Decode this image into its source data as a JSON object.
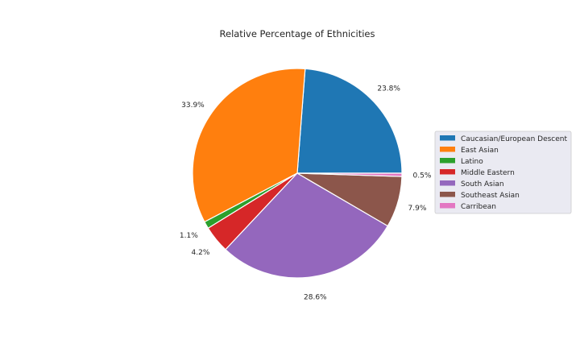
{
  "chart_data": {
    "type": "pie",
    "title": "Relative Percentage of Ethnicities",
    "categories": [
      "Caucasian/European Descent",
      "East Asian",
      "Latino",
      "Middle Eastern",
      "South Asian",
      "Southeast Asian",
      "Carribean"
    ],
    "values": [
      23.8,
      33.9,
      1.1,
      4.2,
      28.6,
      7.9,
      0.5
    ],
    "labels": [
      "23.8%",
      "33.9%",
      "1.1%",
      "4.2%",
      "28.6%",
      "7.9%",
      "0.5%"
    ],
    "colors": [
      "#1f77b4",
      "#ff7f0e",
      "#2ca02c",
      "#d62728",
      "#9467bd",
      "#8c564b",
      "#e377c2"
    ],
    "start_angle": "first slice begins at the 0.5% mark, slices run counterclockwise",
    "legend_position": "right"
  }
}
